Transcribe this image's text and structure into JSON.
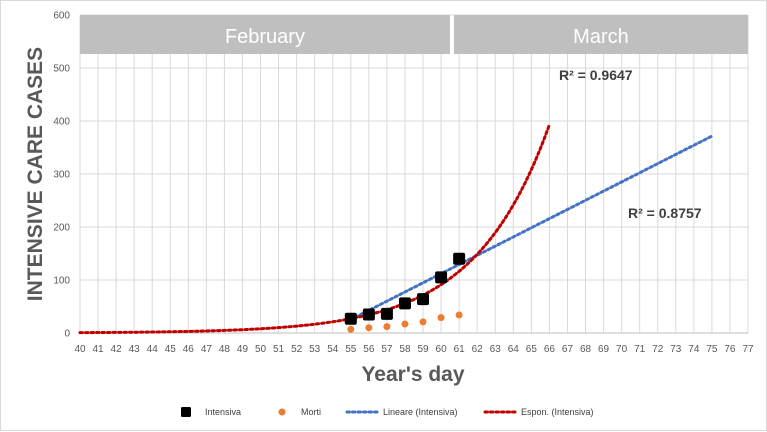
{
  "chart_data": {
    "type": "scatter",
    "xlabel": "Year's day",
    "ylabel": "INTENSIVE CARE CASES",
    "xlim": [
      40,
      77
    ],
    "ylim": [
      0,
      600
    ],
    "x_ticks": [
      40,
      41,
      42,
      43,
      44,
      45,
      46,
      47,
      48,
      49,
      50,
      51,
      52,
      53,
      54,
      55,
      56,
      57,
      58,
      59,
      60,
      61,
      62,
      63,
      64,
      65,
      66,
      67,
      68,
      69,
      70,
      71,
      72,
      73,
      74,
      75,
      76,
      77
    ],
    "y_ticks": [
      0,
      100,
      200,
      300,
      400,
      500,
      600
    ],
    "grid": true,
    "legend_position": "bottom",
    "month_bands": [
      {
        "label": "February",
        "x_start": 40,
        "x_end": 60.6
      },
      {
        "label": "March",
        "x_start": 60.6,
        "x_end": 77
      }
    ],
    "series": [
      {
        "name": "Intensiva",
        "kind": "points",
        "marker": "square",
        "color": "#000000",
        "x": [
          55,
          56,
          57,
          58,
          59,
          60,
          61
        ],
        "y": [
          27,
          35,
          36,
          56,
          64,
          105,
          140
        ]
      },
      {
        "name": "Morti",
        "kind": "points",
        "marker": "circle",
        "color": "#ED7D31",
        "x": [
          55,
          56,
          57,
          58,
          59,
          60,
          61
        ],
        "y": [
          7,
          10,
          12,
          17,
          21,
          29,
          34
        ]
      },
      {
        "name": "Lineare (Intensiva)",
        "kind": "trend-linear",
        "color": "#4472C4",
        "x_range": [
          55,
          75
        ],
        "slope": 17.3,
        "intercept": -926,
        "r2_label": "R² = 0.8757"
      },
      {
        "name": "Espon. (Intensiva)",
        "kind": "trend-exponential",
        "color": "#C00000",
        "x_range": [
          40,
          66
        ],
        "a": 27,
        "b": 0.2435,
        "x0": 55,
        "r2_label": "R² = 0.9647"
      }
    ]
  }
}
